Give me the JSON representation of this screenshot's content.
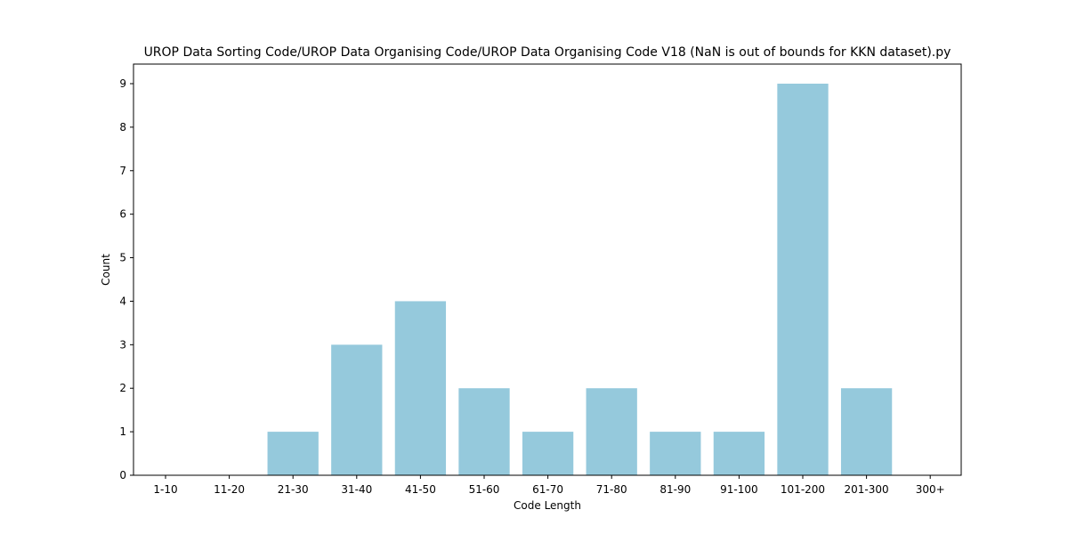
{
  "chart_data": {
    "type": "bar",
    "title": "UROP Data Sorting Code/UROP Data Organising Code/UROP Data Organising Code V18 (NaN is out of bounds for KKN dataset).py",
    "xlabel": "Code Length",
    "ylabel": "Count",
    "categories": [
      "1-10",
      "11-20",
      "21-30",
      "31-40",
      "41-50",
      "51-60",
      "61-70",
      "71-80",
      "81-90",
      "91-100",
      "101-200",
      "201-300",
      "300+"
    ],
    "values": [
      0,
      0,
      1,
      3,
      4,
      2,
      1,
      2,
      1,
      1,
      9,
      2,
      0
    ],
    "ylim": [
      0,
      9.45
    ],
    "yticks": [
      "0",
      "1",
      "2",
      "3",
      "4",
      "5",
      "6",
      "7",
      "8",
      "9"
    ],
    "bar_color": "#95c9dc",
    "grid": false,
    "legend": "none"
  }
}
